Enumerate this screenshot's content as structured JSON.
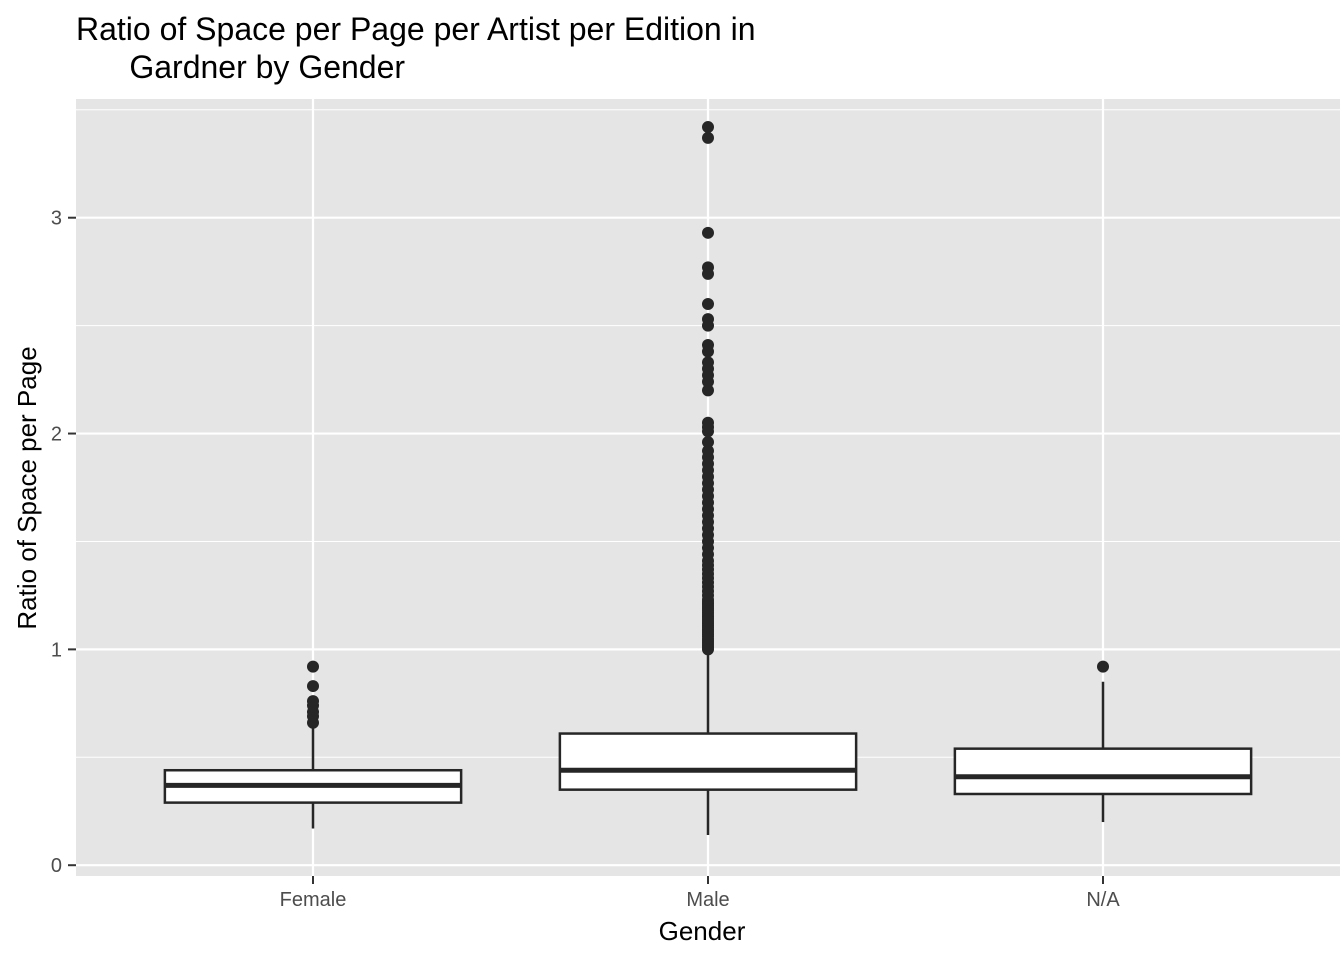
{
  "chart_data": {
    "type": "box",
    "title_lines": [
      "Ratio of Space per Page per Artist per Edition in",
      "      Gardner by Gender"
    ],
    "xlabel": "Gender",
    "ylabel": "Ratio of Space per Page",
    "categories": [
      "Female",
      "Male",
      "N/A"
    ],
    "ylim": [
      -0.05,
      3.55
    ],
    "y_ticks": [
      0,
      1,
      2,
      3
    ],
    "grid": true,
    "colors": {
      "panel": "#e5e5e5",
      "grid": "#ffffff",
      "box_fill": "#ffffff",
      "box_stroke": "#262626",
      "outlier": "#262626"
    },
    "boxes": [
      {
        "category": "Female",
        "whisker_low": 0.17,
        "q1": 0.29,
        "median": 0.37,
        "q3": 0.44,
        "whisker_high": 0.64,
        "outliers": [
          0.66,
          0.69,
          0.71,
          0.74,
          0.76,
          0.83,
          0.92
        ]
      },
      {
        "category": "Male",
        "whisker_low": 0.14,
        "q1": 0.35,
        "median": 0.44,
        "q3": 0.61,
        "whisker_high": 1.0,
        "outliers": [
          1.0,
          1.01,
          1.02,
          1.03,
          1.04,
          1.05,
          1.06,
          1.07,
          1.08,
          1.09,
          1.1,
          1.11,
          1.12,
          1.13,
          1.14,
          1.15,
          1.16,
          1.17,
          1.18,
          1.19,
          1.2,
          1.21,
          1.22,
          1.23,
          1.25,
          1.27,
          1.29,
          1.31,
          1.33,
          1.35,
          1.37,
          1.39,
          1.41,
          1.44,
          1.47,
          1.5,
          1.53,
          1.56,
          1.59,
          1.62,
          1.65,
          1.68,
          1.71,
          1.74,
          1.77,
          1.8,
          1.83,
          1.86,
          1.89,
          1.92,
          1.96,
          2.01,
          2.03,
          2.05,
          2.2,
          2.24,
          2.27,
          2.3,
          2.33,
          2.38,
          2.41,
          2.5,
          2.53,
          2.6,
          2.74,
          2.77,
          2.93,
          3.37,
          3.42
        ]
      },
      {
        "category": "N/A",
        "whisker_low": 0.2,
        "q1": 0.33,
        "median": 0.41,
        "q3": 0.54,
        "whisker_high": 0.85,
        "outliers": [
          0.92
        ]
      }
    ]
  }
}
